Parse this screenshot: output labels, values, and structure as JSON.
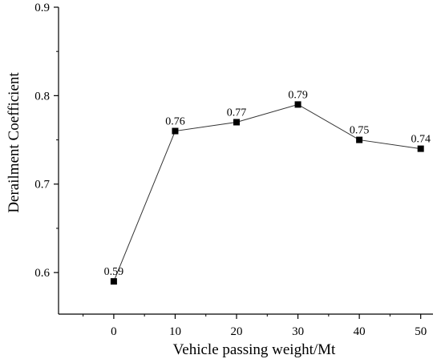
{
  "chart_data": {
    "type": "line",
    "title": "",
    "xlabel": "Vehicle passing weight/Mt",
    "ylabel": "Derailment Coefficient",
    "x": [
      0,
      10,
      20,
      30,
      40,
      50
    ],
    "series": [
      {
        "values": [
          0.59,
          0.76,
          0.77,
          0.79,
          0.75,
          0.74
        ],
        "data_labels": [
          "0.59",
          "0.76",
          "0.77",
          "0.79",
          "0.75",
          "0.74"
        ]
      }
    ],
    "x_ticks": [
      "0",
      "10",
      "20",
      "30",
      "40",
      "50"
    ],
    "y_ticks": [
      "0.6",
      "0.7",
      "0.8",
      "0.9"
    ],
    "xlim": [
      -9,
      52
    ],
    "ylim": [
      0.553,
      0.9
    ],
    "grid": false,
    "marker": "square",
    "line_color": "#333333",
    "marker_color": "#000000"
  }
}
